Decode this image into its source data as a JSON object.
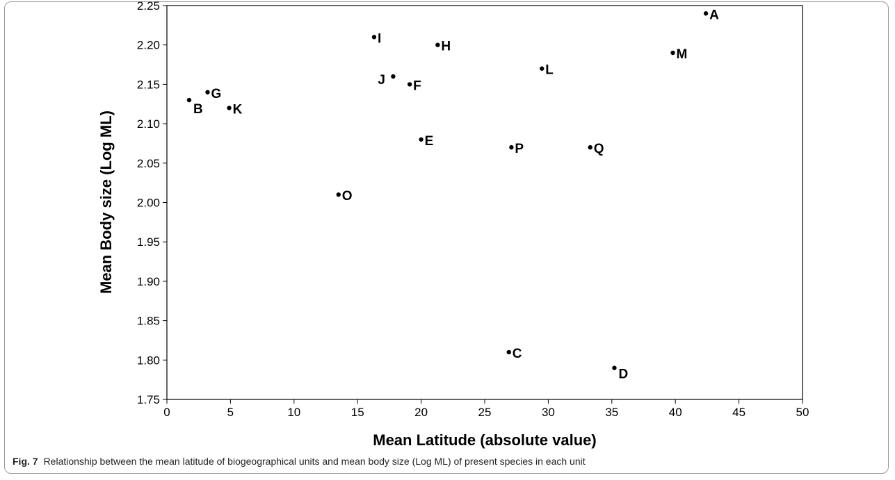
{
  "chart_data": {
    "type": "scatter",
    "xlabel": "Mean Latitude (absolute value)",
    "ylabel": "Mean Body size (Log ML)",
    "points": [
      "A",
      "B",
      "C",
      "D",
      "E",
      "F",
      "G",
      "H",
      "I",
      "J",
      "K",
      "L",
      "M",
      "O",
      "P",
      "Q"
    ],
    "x": [
      42.4,
      1.75,
      26.9,
      35.2,
      20.0,
      19.1,
      3.2,
      21.3,
      16.3,
      17.8,
      4.9,
      29.5,
      39.8,
      13.5,
      27.1,
      33.3
    ],
    "values": [
      2.24,
      2.13,
      1.81,
      1.79,
      2.08,
      2.15,
      2.14,
      2.2,
      2.21,
      2.16,
      2.12,
      2.17,
      2.19,
      2.01,
      2.07,
      2.07
    ],
    "color": "#000000",
    "xlim": [
      0,
      50
    ],
    "xticks": [
      0,
      5,
      10,
      15,
      20,
      25,
      30,
      35,
      40,
      45,
      50
    ],
    "ylim": [
      1.75,
      2.25
    ],
    "yticks": [
      {
        "value": 1.75,
        "label": "1.75"
      },
      {
        "value": 1.8,
        "label": "1.80"
      },
      {
        "value": 1.85,
        "label": "1.85"
      },
      {
        "value": 1.9,
        "label": "1.90"
      },
      {
        "value": 1.95,
        "label": "1.95"
      },
      {
        "value": 2.0,
        "label": "2.00"
      },
      {
        "value": 2.05,
        "label": "2.05"
      },
      {
        "value": 2.1,
        "label": "2.10"
      },
      {
        "value": 2.15,
        "label": "2.15"
      },
      {
        "value": 2.2,
        "label": "2.20"
      },
      {
        "value": 2.25,
        "label": "2.25"
      }
    ]
  },
  "caption": {
    "label": "Fig. 7",
    "text": "Relationship between the mean latitude of biogeographical units and mean body size (Log ML) of present species in each unit"
  }
}
